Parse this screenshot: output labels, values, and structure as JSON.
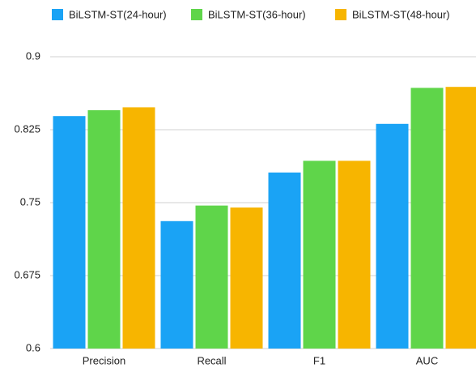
{
  "chart_data": {
    "type": "bar",
    "categories": [
      "Precision",
      "Recall",
      "F1",
      "AUC"
    ],
    "series": [
      {
        "name": "BiLSTM-ST(24-hour)",
        "color": "#1aa3f5",
        "values": [
          0.839,
          0.731,
          0.781,
          0.831
        ]
      },
      {
        "name": "BiLSTM-ST(36-hour)",
        "color": "#5fd54a",
        "values": [
          0.845,
          0.747,
          0.793,
          0.868
        ]
      },
      {
        "name": "BiLSTM-ST(48-hour)",
        "color": "#f7b500",
        "values": [
          0.848,
          0.745,
          0.793,
          0.869
        ]
      }
    ],
    "ylim": [
      0.6,
      0.9
    ],
    "yticks": [
      0.6,
      0.675,
      0.75,
      0.825,
      0.9
    ],
    "grid": true,
    "legend": "top"
  }
}
